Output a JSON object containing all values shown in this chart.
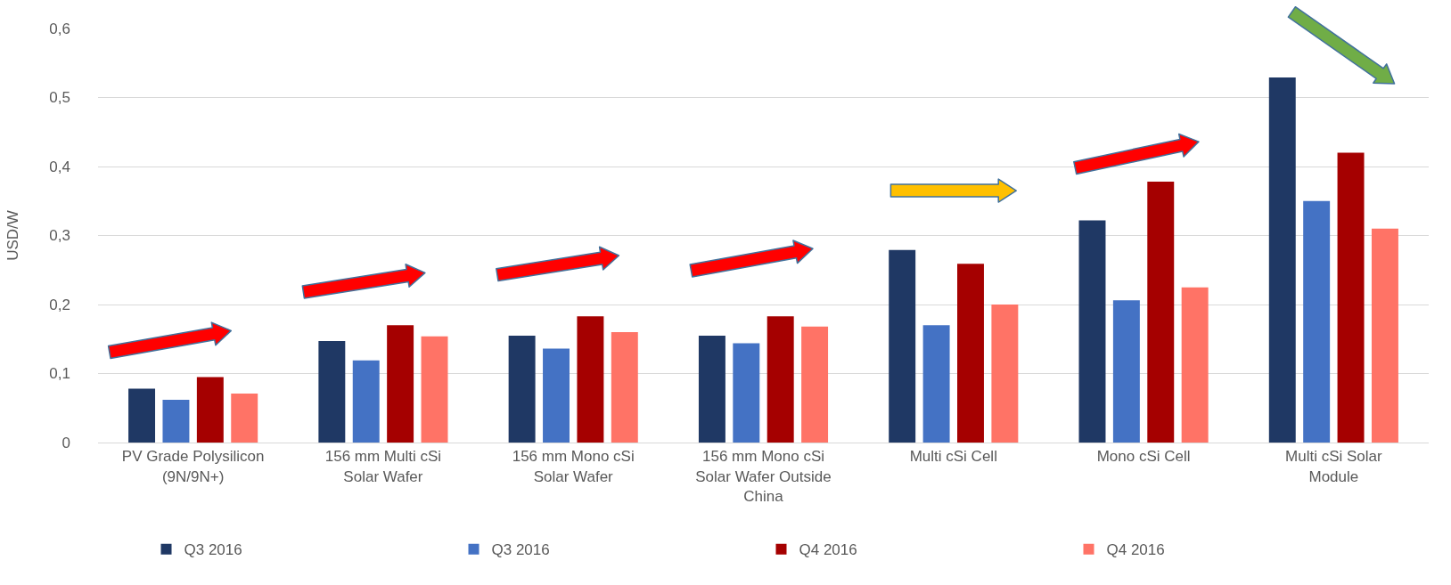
{
  "chart_data": {
    "type": "bar",
    "ylabel": "USD/W",
    "categories": [
      "PV Grade Polysilicon (9N/9N+)",
      "156 mm Multi cSi Solar Wafer",
      "156 mm Mono cSi Solar Wafer",
      "156 mm Mono cSi Solar Wafer Outside China",
      "Multi cSi Cell",
      "Mono cSi Cell",
      "Multi cSi Solar Module"
    ],
    "series": [
      {
        "name": "Q3 2016",
        "color": "#1f3864",
        "values": [
          0.078,
          0.147,
          0.155,
          0.155,
          0.279,
          0.322,
          0.529
        ]
      },
      {
        "name": "Q3 2016",
        "color": "#4472c4",
        "values": [
          0.062,
          0.119,
          0.136,
          0.144,
          0.17,
          0.206,
          0.35
        ]
      },
      {
        "name": "Q4 2016",
        "color": "#a50000",
        "values": [
          0.095,
          0.17,
          0.183,
          0.183,
          0.259,
          0.378,
          0.42
        ]
      },
      {
        "name": "Q4 2016",
        "color": "#ff7366",
        "values": [
          0.071,
          0.154,
          0.16,
          0.168,
          0.2,
          0.225,
          0.31
        ]
      }
    ],
    "ylim": [
      0,
      0.6
    ],
    "yticks": [
      {
        "value": 0,
        "label": "0"
      },
      {
        "value": 0.1,
        "label": "0,1"
      },
      {
        "value": 0.2,
        "label": "0,2"
      },
      {
        "value": 0.3,
        "label": "0,3"
      },
      {
        "value": 0.4,
        "label": "0,4"
      },
      {
        "value": 0.5,
        "label": "0,5"
      },
      {
        "value": 0.6,
        "label": "0,6"
      }
    ],
    "grid": "y",
    "legend": "bottom"
  }
}
